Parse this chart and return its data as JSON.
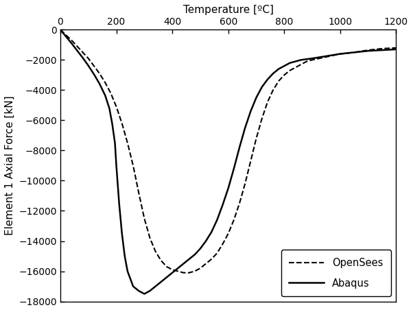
{
  "title": "Temperature [ºC]",
  "ylabel": "Element 1 Axial Force [kN]",
  "xlim": [
    0,
    1200
  ],
  "ylim": [
    -18000,
    0
  ],
  "yticks": [
    0,
    -2000,
    -4000,
    -6000,
    -8000,
    -10000,
    -12000,
    -14000,
    -16000,
    -18000
  ],
  "xticks": [
    0,
    200,
    400,
    600,
    800,
    1000,
    1200
  ],
  "background_color": "#ffffff",
  "legend_labels": [
    "OpenSees",
    "Abaqus"
  ],
  "opensees_color": "#000000",
  "abaqus_color": "#000000",
  "opensees_T": [
    0,
    20,
    40,
    60,
    80,
    100,
    120,
    140,
    160,
    180,
    200,
    220,
    240,
    260,
    280,
    300,
    320,
    340,
    360,
    380,
    400,
    420,
    440,
    460,
    480,
    500,
    520,
    540,
    560,
    580,
    600,
    620,
    640,
    660,
    680,
    700,
    720,
    740,
    760,
    780,
    800,
    820,
    840,
    860,
    880,
    900,
    950,
    1000,
    1050,
    1100,
    1150,
    1200
  ],
  "opensees_F": [
    0,
    -350,
    -700,
    -1100,
    -1500,
    -1900,
    -2400,
    -2900,
    -3500,
    -4200,
    -5100,
    -6200,
    -7500,
    -9000,
    -10800,
    -12500,
    -13800,
    -14700,
    -15300,
    -15700,
    -15900,
    -16000,
    -16100,
    -16100,
    -16000,
    -15800,
    -15500,
    -15200,
    -14800,
    -14200,
    -13500,
    -12600,
    -11500,
    -10200,
    -8700,
    -7200,
    -5900,
    -4800,
    -4000,
    -3400,
    -3000,
    -2700,
    -2500,
    -2300,
    -2100,
    -2000,
    -1800,
    -1600,
    -1500,
    -1350,
    -1250,
    -1200
  ],
  "abaqus_T": [
    0,
    20,
    40,
    60,
    80,
    100,
    120,
    140,
    160,
    175,
    185,
    195,
    200,
    210,
    220,
    230,
    240,
    260,
    280,
    300,
    320,
    340,
    360,
    380,
    400,
    420,
    440,
    460,
    480,
    500,
    520,
    540,
    560,
    580,
    600,
    620,
    640,
    660,
    680,
    700,
    720,
    740,
    760,
    780,
    800,
    820,
    860,
    900,
    950,
    1000,
    1050,
    1100,
    1150,
    1200
  ],
  "abaqus_F": [
    0,
    -450,
    -900,
    -1380,
    -1860,
    -2380,
    -2950,
    -3580,
    -4350,
    -5200,
    -6200,
    -7500,
    -9000,
    -11500,
    -13500,
    -15000,
    -16000,
    -17000,
    -17300,
    -17500,
    -17300,
    -17000,
    -16700,
    -16400,
    -16100,
    -15800,
    -15500,
    -15200,
    -14900,
    -14500,
    -14000,
    -13400,
    -12600,
    -11600,
    -10500,
    -9200,
    -7800,
    -6500,
    -5400,
    -4500,
    -3800,
    -3300,
    -2900,
    -2600,
    -2400,
    -2200,
    -2000,
    -1900,
    -1750,
    -1600,
    -1500,
    -1400,
    -1350,
    -1300
  ]
}
